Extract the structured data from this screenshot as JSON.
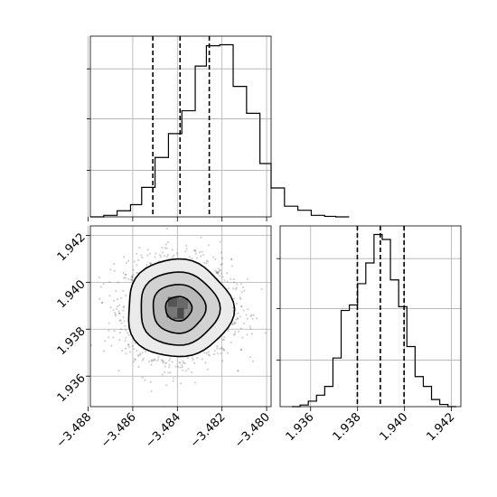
{
  "chart_data": [
    {
      "type": "histogram",
      "panel": "top-left",
      "variable_index": 0,
      "bin_edges": [
        -3.4879,
        -3.4873,
        -3.4867,
        -3.4861,
        -3.4856,
        -3.485,
        -3.4844,
        -3.4838,
        -3.4832,
        -3.4827,
        -3.4821,
        -3.4815,
        -3.4809,
        -3.4803,
        -3.4798,
        -3.4792,
        -3.4786,
        -3.478,
        -3.4774,
        -3.4769,
        -3.4763
      ],
      "counts": [
        0,
        3,
        12,
        24,
        58,
        117,
        164,
        209,
        297,
        337,
        339,
        257,
        204,
        105,
        57,
        21,
        13,
        3,
        1,
        0
      ],
      "quantile_lines": [
        -3.4851,
        -3.48388,
        -3.48257
      ],
      "grid": true,
      "y_ticks_shown": false
    },
    {
      "type": "histogram",
      "panel": "bottom-right",
      "variable_index": 1,
      "xlim": [
        1.9347,
        1.9424
      ],
      "x_ticks": [
        "1.936",
        "1.938",
        "1.940",
        "1.942"
      ],
      "bin_edges": [
        1.9352,
        1.93555,
        1.9359,
        1.93625,
        1.9366,
        1.93695,
        1.9373,
        1.93765,
        1.938,
        1.93835,
        1.9387,
        1.93905,
        1.9394,
        1.93975,
        1.9401,
        1.94045,
        1.9408,
        1.94115,
        1.9415,
        1.94185,
        1.9422
      ],
      "counts": [
        0,
        3,
        10,
        21,
        37,
        89,
        176,
        186,
        225,
        263,
        315,
        306,
        232,
        183,
        110,
        55,
        37,
        13,
        4,
        0
      ],
      "quantile_lines": [
        1.93799,
        1.93897,
        1.93998
      ],
      "grid": true,
      "y_ticks_shown": false
    },
    {
      "type": "scatter_contour",
      "panel": "bottom-left",
      "x_variable_index": 0,
      "y_variable_index": 1,
      "xlim": [
        -3.4879,
        -3.4798
      ],
      "ylim": [
        1.9347,
        1.9424
      ],
      "x_ticks": [
        "−3.488",
        "−3.486",
        "−3.484",
        "−3.482",
        "−3.480"
      ],
      "y_ticks": [
        "1.936",
        "1.938",
        "1.940",
        "1.942"
      ],
      "center": {
        "x": -3.48395,
        "y": 1.93888
      },
      "sigma": {
        "x": 0.00118,
        "y": 0.00104
      },
      "contour_levels_sigma": [
        0.5,
        1.0,
        1.5,
        2.0
      ],
      "grid": true
    }
  ]
}
